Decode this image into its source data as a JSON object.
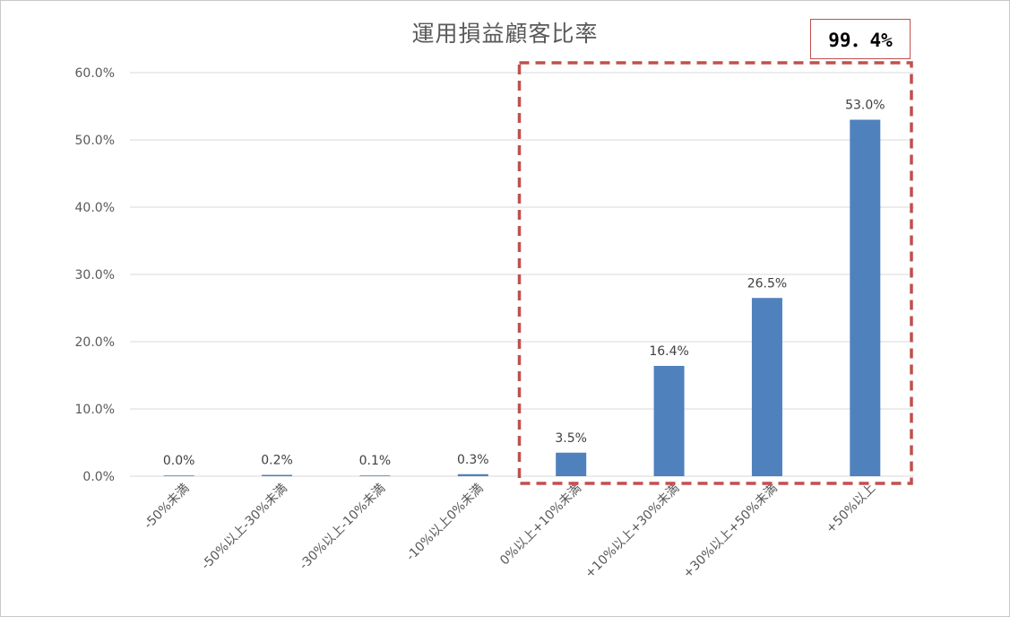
{
  "chart_data": {
    "type": "bar",
    "title": "運用損益顧客比率",
    "categories": [
      "-50%未満",
      "-50%以上-30%未満",
      "-30%以上-10%未満",
      "-10%以上0%未満",
      "0%以上+10%未満",
      "+10%以上+30%未満",
      "+30%以上+50%未満",
      "+50%以上"
    ],
    "values": [
      0.0,
      0.2,
      0.1,
      0.3,
      3.5,
      16.4,
      26.5,
      53.0
    ],
    "data_labels": [
      "0.0%",
      "0.2%",
      "0.1%",
      "0.3%",
      "3.5%",
      "16.4%",
      "26.5%",
      "53.0%"
    ],
    "ylim": [
      0,
      60
    ],
    "yticks": [
      0,
      10,
      20,
      30,
      40,
      50,
      60
    ],
    "ytick_labels": [
      "0.0%",
      "10.0%",
      "20.0%",
      "30.0%",
      "40.0%",
      "50.0%",
      "60.0%"
    ],
    "xlabel": "",
    "ylabel": "",
    "grid": true,
    "legend": "none",
    "bar_color": "#4f81bd",
    "annotation": {
      "text": "99．4%",
      "highlight_categories": [
        "0%以上+10%未満",
        "+10%以上+30%未満",
        "+30%以上+50%未満",
        "+50%以上"
      ],
      "box_color": "#c0504d",
      "style": "dashed"
    }
  }
}
